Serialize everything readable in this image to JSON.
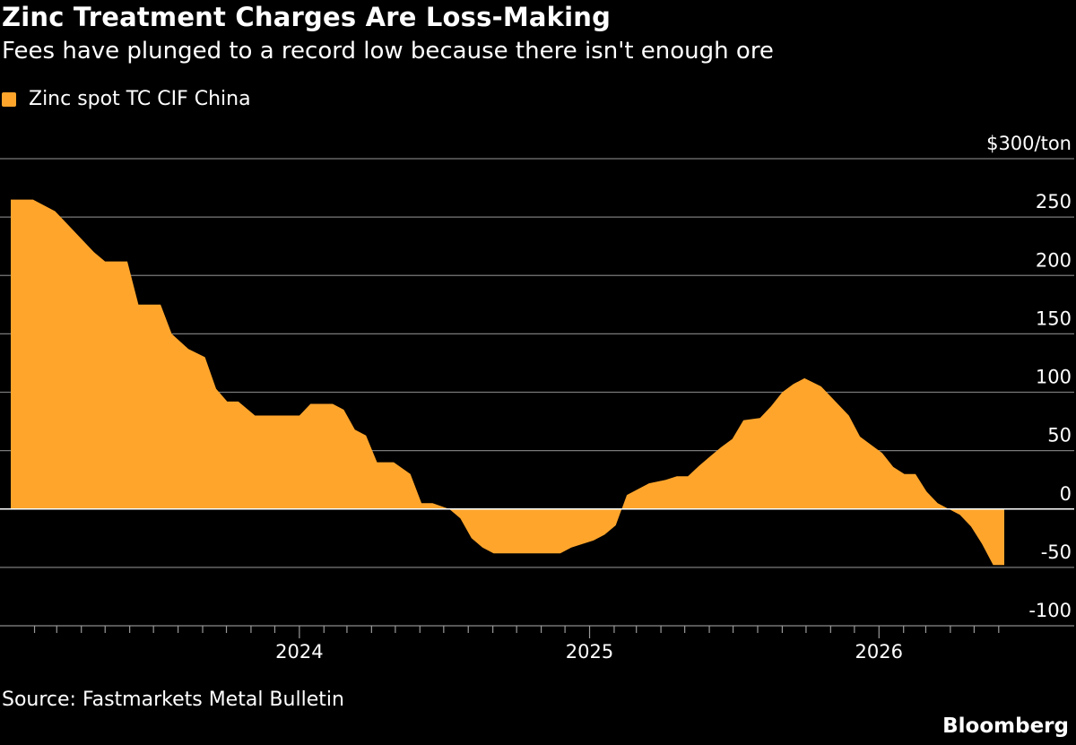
{
  "title": "Zinc Treatment Charges Are Loss-Making",
  "subtitle": "Fees have plunged to a record low because there isn't enough ore",
  "source": "Source: Fastmarkets Metal Bulletin",
  "brand": "Bloomberg",
  "chart_data": {
    "type": "area",
    "ylabel": "",
    "y_unit_label": "$300/ton",
    "ylim": [
      -100,
      300
    ],
    "yticks": [
      -100,
      -50,
      0,
      50,
      100,
      150,
      200,
      250,
      300
    ],
    "ytick_labels": [
      "-100",
      "-50",
      "0",
      "50",
      "100",
      "150",
      "200",
      "250",
      "$300/ton"
    ],
    "xlim": [
      "2023-01-02",
      "2026-06-08"
    ],
    "xticks": [
      "2024-01-01",
      "2025-01-01",
      "2026-01-01"
    ],
    "xtick_labels": [
      "2024",
      "2025",
      "2026"
    ],
    "grid": true,
    "legend_position": "top-left",
    "series": [
      {
        "name": "Zinc spot TC CIF China",
        "color": "#FFA52C",
        "x": [
          "2023-01-02",
          "2023-01-30",
          "2023-02-27",
          "2023-03-27",
          "2023-04-17",
          "2023-05-01",
          "2023-05-29",
          "2023-06-12",
          "2023-07-10",
          "2023-07-24",
          "2023-08-14",
          "2023-09-04",
          "2023-09-18",
          "2023-10-02",
          "2023-10-16",
          "2023-11-06",
          "2023-12-04",
          "2024-01-01",
          "2024-01-15",
          "2024-02-12",
          "2024-02-26",
          "2024-03-11",
          "2024-03-25",
          "2024-04-08",
          "2024-04-29",
          "2024-05-20",
          "2024-06-03",
          "2024-06-17",
          "2024-07-08",
          "2024-07-22",
          "2024-08-05",
          "2024-08-19",
          "2024-09-02",
          "2024-09-16",
          "2024-10-14",
          "2024-11-11",
          "2024-11-25",
          "2024-12-09",
          "2024-12-23",
          "2025-01-06",
          "2025-01-20",
          "2025-02-03",
          "2025-02-17",
          "2025-03-17",
          "2025-04-07",
          "2025-04-21",
          "2025-05-05",
          "2025-05-19",
          "2025-06-02",
          "2025-06-16",
          "2025-06-30",
          "2025-07-14",
          "2025-08-04",
          "2025-08-18",
          "2025-09-01",
          "2025-09-15",
          "2025-09-29",
          "2025-10-20",
          "2025-11-03",
          "2025-11-24",
          "2025-12-08",
          "2025-12-22",
          "2026-01-05",
          "2026-01-19",
          "2026-02-02",
          "2026-02-16",
          "2026-03-02",
          "2026-03-16",
          "2026-03-30",
          "2026-04-13",
          "2026-04-27",
          "2026-05-11",
          "2026-05-25",
          "2026-06-08"
        ],
        "y": [
          265,
          265,
          255,
          235,
          220,
          212,
          212,
          175,
          175,
          150,
          137,
          130,
          103,
          92,
          92,
          80,
          80,
          80,
          90,
          90,
          85,
          68,
          63,
          40,
          40,
          30,
          5,
          5,
          0,
          -8,
          -25,
          -33,
          -38,
          -38,
          -38,
          -38,
          -38,
          -33,
          -30,
          -27,
          -22,
          -14,
          12,
          22,
          25,
          28,
          28,
          37,
          45,
          53,
          60,
          76,
          78,
          88,
          100,
          107,
          112,
          105,
          95,
          80,
          62,
          55,
          48,
          36,
          30,
          30,
          15,
          5,
          0,
          -5,
          -15,
          -30,
          -48,
          -48
        ]
      }
    ]
  }
}
